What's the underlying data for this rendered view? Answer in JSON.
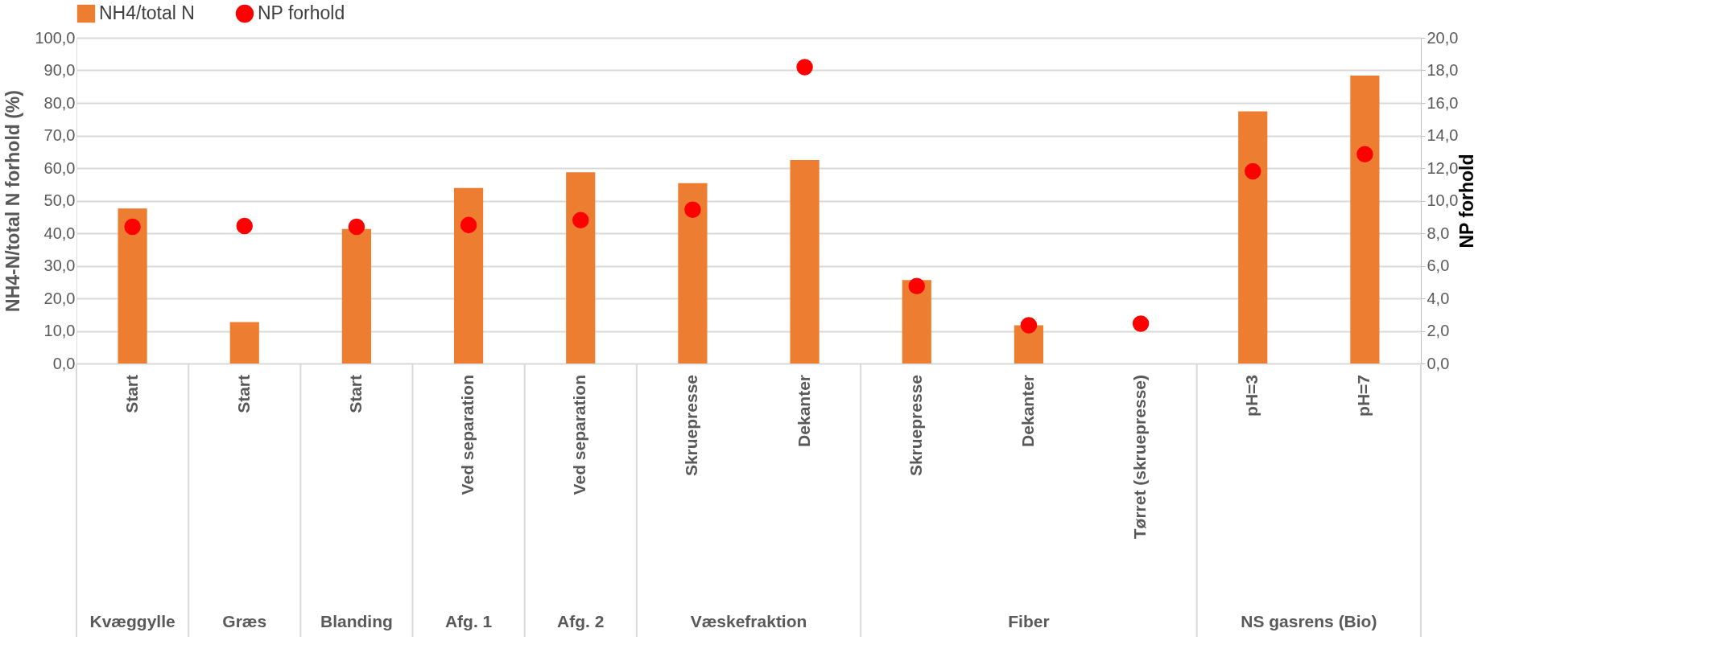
{
  "chart_data": {
    "type": "bar",
    "categories": [
      "Start",
      "Start",
      "Start",
      "Ved separation",
      "Ved separation",
      "Skruepresse",
      "Dekanter",
      "Skruepresse",
      "Dekanter",
      "Tørret (skruepresse)",
      "pH=3",
      "pH=7"
    ],
    "series": [
      {
        "name": "NH4/total N",
        "color": "#ed7d31",
        "values": [
          47.6,
          12.7,
          41.3,
          53.9,
          58.7,
          55.4,
          62.5,
          25.6,
          11.7,
          null,
          77.4,
          88.4
        ]
      },
      {
        "name": "NP forhold",
        "type": "scatter",
        "axis": "y2",
        "color": "#ff0000",
        "values": [
          8.4,
          8.45,
          8.4,
          8.5,
          8.8,
          9.45,
          18.2,
          4.75,
          2.35,
          2.45,
          11.8,
          12.85
        ]
      }
    ],
    "ylabel": "NH4-N/total N forhold (%)",
    "y2label": "NP forhold",
    "ylim": [
      0,
      100
    ],
    "yticks": [
      {
        "value": 0,
        "label": "0,0"
      },
      {
        "value": 10,
        "label": "10,0"
      },
      {
        "value": 20,
        "label": "20,0"
      },
      {
        "value": 30,
        "label": "30,0"
      },
      {
        "value": 40,
        "label": "40,0"
      },
      {
        "value": 50,
        "label": "50,0"
      },
      {
        "value": 60,
        "label": "60,0"
      },
      {
        "value": 70,
        "label": "70,0"
      },
      {
        "value": 80,
        "label": "80,0"
      },
      {
        "value": 90,
        "label": "90,0"
      },
      {
        "value": 100,
        "label": "100,0"
      }
    ],
    "y2lim": [
      0,
      20
    ],
    "y2ticks": [
      {
        "value": 0,
        "label": "0,0"
      },
      {
        "value": 2,
        "label": "2,0"
      },
      {
        "value": 4,
        "label": "4,0"
      },
      {
        "value": 6,
        "label": "6,0"
      },
      {
        "value": 8,
        "label": "8,0"
      },
      {
        "value": 10,
        "label": "10,0"
      },
      {
        "value": 12,
        "label": "12,0"
      },
      {
        "value": 14,
        "label": "14,0"
      },
      {
        "value": 16,
        "label": "16,0"
      },
      {
        "value": 18,
        "label": "18,0"
      },
      {
        "value": 20,
        "label": "20,0"
      }
    ],
    "annotations": [
      "Kvæggylle",
      "Græs",
      "Blanding",
      "Afg. 1",
      "Afg. 2",
      "Væskefraktion",
      "Fiber",
      "NS gasrens (Bio)"
    ],
    "grid": "y",
    "legend": "top",
    "marker": "circle"
  }
}
